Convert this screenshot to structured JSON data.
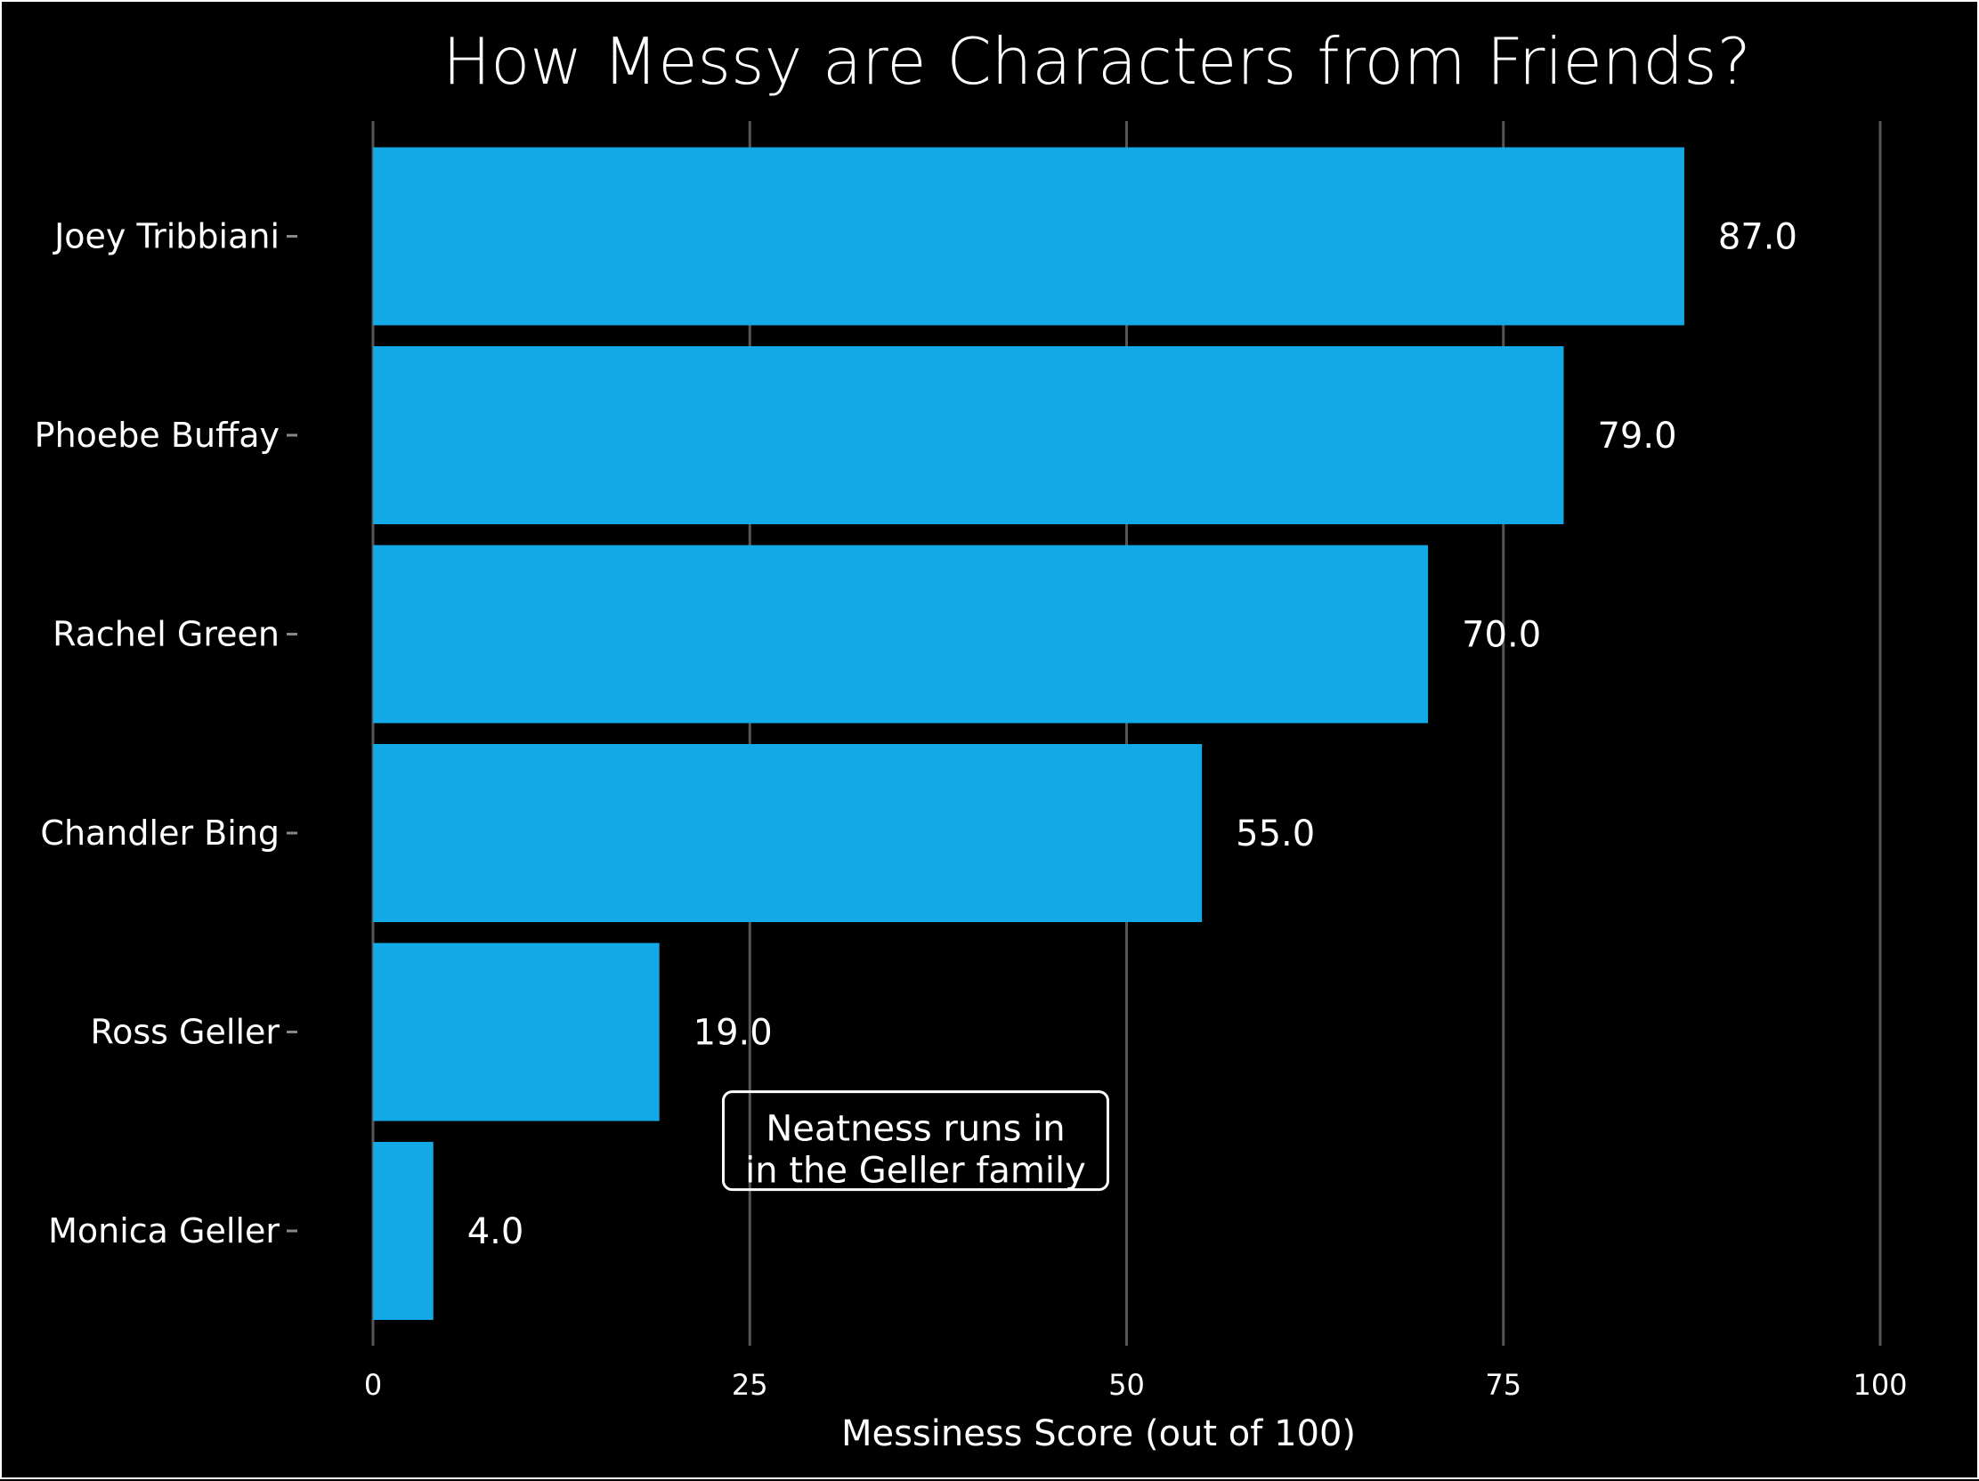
{
  "chart_data": {
    "type": "bar",
    "orientation": "horizontal",
    "title": "How Messy are Characters from Friends?",
    "xlabel": "Messiness Score (out of 100)",
    "ylabel": "",
    "categories": [
      "Joey Tribbiani",
      "Phoebe Buffay",
      "Rachel Green",
      "Chandler Bing",
      "Ross Geller",
      "Monica Geller"
    ],
    "values": [
      87.0,
      79.0,
      70.0,
      55.0,
      19.0,
      4.0
    ],
    "value_labels": [
      "87.0",
      "79.0",
      "70.0",
      "55.0",
      "19.0",
      "4.0"
    ],
    "xlim": [
      0,
      100
    ],
    "x_ticks": [
      0,
      25,
      50,
      75,
      100
    ],
    "x_tick_labels": [
      "0",
      "25",
      "50",
      "75",
      "100"
    ],
    "grid": "vertical",
    "legend": "none",
    "annotation": {
      "lines": [
        "Neatness runs in",
        "in the Geller family"
      ],
      "x": 36,
      "category_position": 5.6
    },
    "colors": {
      "bar": "#12a9e6",
      "background": "#000000",
      "grid": "#555555",
      "text": "#ffffff"
    }
  }
}
